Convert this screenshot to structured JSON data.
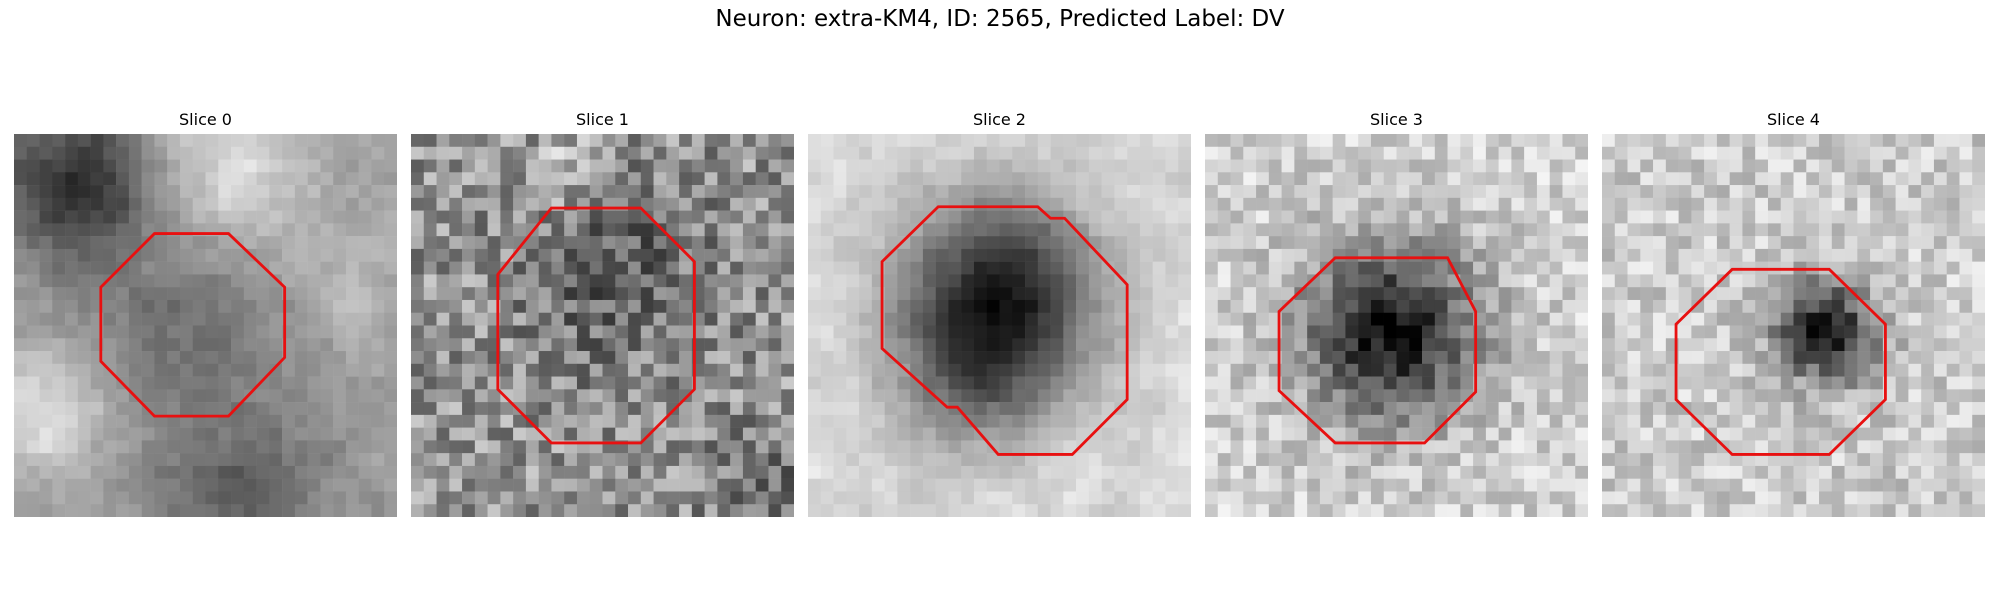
{
  "figure": {
    "title": "Neuron: extra-KM4, ID: 2565, Predicted Label: DV"
  },
  "colors": {
    "roi_outline": "#e81010",
    "background": "#ffffff"
  },
  "colormap": "gray",
  "panels": [
    {
      "title": "Slice 0",
      "roi_outline": "octagon",
      "description_of_content": "blurry grayscale microscopy patch with a mid-gray blob; dark region at upper-left"
    },
    {
      "title": "Slice 1",
      "roi_outline": "octagon",
      "description_of_content": "noisy grayscale patch with a faint darker center"
    },
    {
      "title": "Slice 2",
      "roi_outline": "octagon",
      "description_of_content": "light background with a large dark circular cell body"
    },
    {
      "title": "Slice 3",
      "roi_outline": "octagon",
      "description_of_content": "light background with a dark cell body slightly left of center"
    },
    {
      "title": "Slice 4",
      "roi_outline": "octagon",
      "description_of_content": "light noisy background with a small dark spot right of center"
    }
  ]
}
